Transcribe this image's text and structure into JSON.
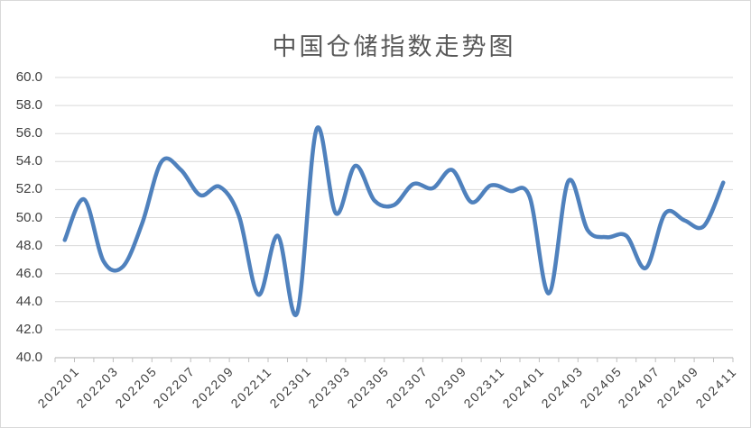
{
  "chart_data": {
    "type": "line",
    "title": "中国仓储指数走势图",
    "xlabel": "",
    "ylabel": "",
    "ylim": [
      40.0,
      60.0
    ],
    "ytick_step": 2.0,
    "y_tick_labels": [
      "40.0",
      "42.0",
      "44.0",
      "46.0",
      "48.0",
      "50.0",
      "52.0",
      "54.0",
      "56.0",
      "58.0",
      "60.0"
    ],
    "x_label_interval": 2,
    "x": [
      "202201",
      "202202",
      "202203",
      "202204",
      "202205",
      "202206",
      "202207",
      "202208",
      "202209",
      "202210",
      "202211",
      "202212",
      "202301",
      "202302",
      "202303",
      "202304",
      "202305",
      "202306",
      "202307",
      "202308",
      "202309",
      "202310",
      "202311",
      "202312",
      "202401",
      "202402",
      "202403",
      "202404",
      "202405",
      "202406",
      "202407",
      "202408",
      "202409",
      "202410",
      "202411"
    ],
    "series": [
      {
        "name": "中国仓储指数",
        "smooth": true,
        "color": "#4f81bd",
        "values": [
          48.4,
          51.3,
          46.9,
          46.5,
          49.6,
          54.0,
          53.4,
          51.6,
          52.2,
          50.1,
          44.5,
          48.7,
          43.2,
          56.3,
          50.3,
          53.7,
          51.2,
          50.9,
          52.4,
          52.1,
          53.4,
          51.1,
          52.3,
          51.9,
          51.5,
          44.6,
          52.6,
          49.1,
          48.6,
          48.7,
          46.4,
          50.3,
          49.8,
          49.4,
          52.5
        ]
      }
    ],
    "grid": true,
    "legend": "none",
    "colors": {
      "gridline": "#d9d9d9",
      "axis": "#bfbfbf",
      "tick_label": "#3f3f3f",
      "title": "#595959",
      "series": "#4f81bd"
    }
  }
}
